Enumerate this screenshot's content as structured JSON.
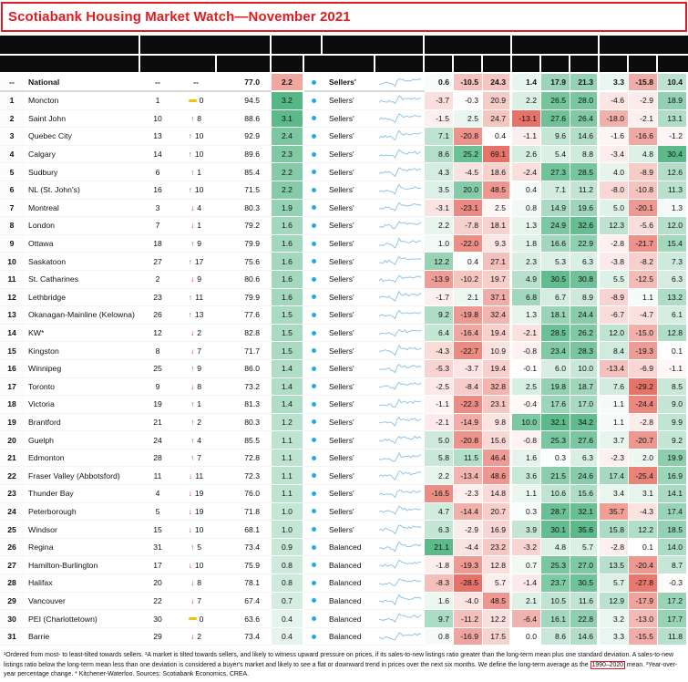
{
  "title": "Scotiabank Housing Market Watch—November 2021",
  "colors": {
    "title_red": "#e11b22",
    "dot_blue": "#29a8e0",
    "up_green": "#169b4c",
    "down_red": "#d7281e",
    "flat_yellow": "#f2c500",
    "spark_blue": "#92c6e9",
    "header_black": "#0b0b0b"
  },
  "heatmap": {
    "green": "#4db380",
    "red": "#e4675c",
    "col_max": [
      21.1,
      28.5,
      69.1,
      13.1,
      32.1,
      35.6,
      35.7,
      29.2,
      30.4
    ],
    "col_reverse": [
      false,
      false,
      true,
      false,
      false,
      false,
      false,
      false,
      false
    ],
    "dev_max": 3.2,
    "overrides": {
      "0-dev": "#f2a79e",
      "24-6": "#ef9f94"
    }
  },
  "sparkline_base": [
    6,
    6.5,
    6,
    7,
    6.5,
    7,
    6,
    5,
    3,
    8,
    12,
    10,
    9,
    9.5,
    8.5,
    9,
    8.8,
    9.5,
    10,
    9,
    9.5,
    10
  ],
  "chart_data": {
    "type": "table",
    "value_column_count": 9,
    "rows": [
      {
        "rank": "--",
        "city": "National",
        "prev": "--",
        "dir": null,
        "chg": "--",
        "ratio": "77.0",
        "dev": "2.2",
        "market": "Sellers'",
        "vals": [
          0.6,
          -10.5,
          24.3,
          1.4,
          17.9,
          21.3,
          3.3,
          -15.8,
          10.4
        ]
      },
      {
        "rank": "1",
        "city": "Moncton",
        "prev": "1",
        "dir": "flat",
        "chg": "0",
        "ratio": "94.5",
        "dev": "3.2",
        "market": "Sellers'",
        "vals": [
          -3.7,
          -0.3,
          20.9,
          2.2,
          26.5,
          28.0,
          -4.6,
          -2.9,
          18.9
        ]
      },
      {
        "rank": "2",
        "city": "Saint John",
        "prev": "10",
        "dir": "up",
        "chg": "8",
        "ratio": "88.6",
        "dev": "3.1",
        "market": "Sellers'",
        "vals": [
          -1.5,
          2.5,
          24.7,
          -13.1,
          27.6,
          26.4,
          -18.0,
          -2.1,
          13.1
        ]
      },
      {
        "rank": "3",
        "city": "Quebec City",
        "prev": "13",
        "dir": "up",
        "chg": "10",
        "ratio": "92.9",
        "dev": "2.4",
        "market": "Sellers'",
        "vals": [
          7.1,
          -20.8,
          0.4,
          -1.1,
          9.6,
          14.6,
          -1.6,
          -16.6,
          -1.2
        ]
      },
      {
        "rank": "4",
        "city": "Calgary",
        "prev": "14",
        "dir": "up",
        "chg": "10",
        "ratio": "89.6",
        "dev": "2.3",
        "market": "Sellers'",
        "vals": [
          8.6,
          25.2,
          69.1,
          2.6,
          5.4,
          8.8,
          -3.4,
          4.8,
          30.4
        ]
      },
      {
        "rank": "5",
        "city": "Sudbury",
        "prev": "6",
        "dir": "up",
        "chg": "1",
        "ratio": "85.4",
        "dev": "2.2",
        "market": "Sellers'",
        "vals": [
          4.3,
          -4.5,
          18.6,
          -2.4,
          27.3,
          28.5,
          4.0,
          -8.9,
          12.6
        ]
      },
      {
        "rank": "6",
        "city": "NL (St. John's)",
        "prev": "16",
        "dir": "up",
        "chg": "10",
        "ratio": "71.5",
        "dev": "2.2",
        "market": "Sellers'",
        "vals": [
          3.5,
          20.0,
          48.5,
          0.4,
          7.1,
          11.2,
          -8.0,
          -10.8,
          11.3
        ]
      },
      {
        "rank": "7",
        "city": "Montreal",
        "prev": "3",
        "dir": "down",
        "chg": "4",
        "ratio": "80.3",
        "dev": "1.9",
        "market": "Sellers'",
        "vals": [
          -3.1,
          -23.1,
          2.5,
          0.8,
          14.9,
          19.6,
          5.0,
          -20.1,
          1.3
        ]
      },
      {
        "rank": "8",
        "city": "London",
        "prev": "7",
        "dir": "down",
        "chg": "1",
        "ratio": "79.2",
        "dev": "1.6",
        "market": "Sellers'",
        "vals": [
          2.2,
          -7.8,
          18.1,
          1.3,
          24.9,
          32.6,
          12.3,
          -5.6,
          12.0
        ]
      },
      {
        "rank": "9",
        "city": "Ottawa",
        "prev": "18",
        "dir": "up",
        "chg": "9",
        "ratio": "79.9",
        "dev": "1.6",
        "market": "Sellers'",
        "vals": [
          1.0,
          -22.0,
          9.3,
          1.8,
          16.6,
          22.9,
          -2.8,
          -21.7,
          15.4
        ]
      },
      {
        "rank": "10",
        "city": "Saskatoon",
        "prev": "27",
        "dir": "up",
        "chg": "17",
        "ratio": "75.6",
        "dev": "1.6",
        "market": "Sellers'",
        "vals": [
          12.2,
          0.4,
          27.1,
          2.3,
          5.3,
          6.3,
          -3.8,
          -8.2,
          7.3
        ]
      },
      {
        "rank": "11",
        "city": "St. Catharines",
        "prev": "2",
        "dir": "down",
        "chg": "9",
        "ratio": "80.6",
        "dev": "1.6",
        "market": "Sellers'",
        "vals": [
          -13.9,
          -10.2,
          19.7,
          4.9,
          30.5,
          30.8,
          5.5,
          -12.5,
          6.3
        ]
      },
      {
        "rank": "12",
        "city": "Lethbridge",
        "prev": "23",
        "dir": "up",
        "chg": "11",
        "ratio": "79.9",
        "dev": "1.6",
        "market": "Sellers'",
        "vals": [
          -1.7,
          2.1,
          37.1,
          6.8,
          6.7,
          8.9,
          -8.9,
          1.1,
          13.2
        ]
      },
      {
        "rank": "13",
        "city": "Okanagan-Mainline (Kelowna)",
        "prev": "26",
        "dir": "up",
        "chg": "13",
        "ratio": "77.6",
        "dev": "1.5",
        "market": "Sellers'",
        "vals": [
          9.2,
          -19.8,
          32.4,
          1.3,
          18.1,
          24.4,
          -6.7,
          -4.7,
          6.1
        ]
      },
      {
        "rank": "14",
        "city": "KW*",
        "prev": "12",
        "dir": "down",
        "chg": "2",
        "ratio": "82.8",
        "dev": "1.5",
        "market": "Sellers'",
        "vals": [
          6.4,
          -16.4,
          19.4,
          -2.1,
          28.5,
          26.2,
          12.0,
          -15.0,
          12.8
        ]
      },
      {
        "rank": "15",
        "city": "Kingston",
        "prev": "8",
        "dir": "down",
        "chg": "7",
        "ratio": "71.7",
        "dev": "1.5",
        "market": "Sellers'",
        "vals": [
          -4.3,
          -22.7,
          10.9,
          -0.8,
          23.4,
          28.3,
          8.4,
          -19.3,
          0.1
        ]
      },
      {
        "rank": "16",
        "city": "Winnipeg",
        "prev": "25",
        "dir": "up",
        "chg": "9",
        "ratio": "86.0",
        "dev": "1.4",
        "market": "Sellers'",
        "vals": [
          -5.3,
          -3.7,
          19.4,
          -0.1,
          6.0,
          10.0,
          -13.4,
          -6.9,
          -1.1
        ]
      },
      {
        "rank": "17",
        "city": "Toronto",
        "prev": "9",
        "dir": "down",
        "chg": "8",
        "ratio": "73.2",
        "dev": "1.4",
        "market": "Sellers'",
        "vals": [
          -2.5,
          -8.4,
          32.8,
          2.5,
          19.8,
          18.7,
          7.6,
          -29.2,
          8.5
        ]
      },
      {
        "rank": "18",
        "city": "Victoria",
        "prev": "19",
        "dir": "up",
        "chg": "1",
        "ratio": "81.3",
        "dev": "1.4",
        "market": "Sellers'",
        "vals": [
          -1.1,
          -22.3,
          23.1,
          -0.4,
          17.6,
          17.0,
          1.1,
          -24.4,
          9.0
        ]
      },
      {
        "rank": "19",
        "city": "Brantford",
        "prev": "21",
        "dir": "up",
        "chg": "2",
        "ratio": "80.3",
        "dev": "1.2",
        "market": "Sellers'",
        "vals": [
          -2.1,
          -14.9,
          9.8,
          10.0,
          32.1,
          34.2,
          1.1,
          -2.8,
          9.9
        ]
      },
      {
        "rank": "20",
        "city": "Guelph",
        "prev": "24",
        "dir": "up",
        "chg": "4",
        "ratio": "85.5",
        "dev": "1.1",
        "market": "Sellers'",
        "vals": [
          5.0,
          -20.8,
          15.6,
          -0.8,
          25.3,
          27.6,
          3.7,
          -20.7,
          9.2
        ]
      },
      {
        "rank": "21",
        "city": "Edmonton",
        "prev": "28",
        "dir": "up",
        "chg": "7",
        "ratio": "72.8",
        "dev": "1.1",
        "market": "Sellers'",
        "vals": [
          5.8,
          11.5,
          46.4,
          1.6,
          0.3,
          6.3,
          -2.3,
          2.0,
          19.9
        ]
      },
      {
        "rank": "22",
        "city": "Fraser Valley (Abbotsford)",
        "prev": "11",
        "dir": "down",
        "chg": "11",
        "ratio": "72.3",
        "dev": "1.1",
        "market": "Sellers'",
        "vals": [
          2.2,
          -13.4,
          48.6,
          3.6,
          21.5,
          24.6,
          17.4,
          -25.4,
          16.9
        ]
      },
      {
        "rank": "23",
        "city": "Thunder Bay",
        "prev": "4",
        "dir": "down",
        "chg": "19",
        "ratio": "76.0",
        "dev": "1.1",
        "market": "Sellers'",
        "vals": [
          -16.5,
          -2.3,
          14.8,
          1.1,
          10.6,
          15.6,
          3.4,
          3.1,
          14.1
        ]
      },
      {
        "rank": "24",
        "city": "Peterborough",
        "prev": "5",
        "dir": "down",
        "chg": "19",
        "ratio": "71.8",
        "dev": "1.0",
        "market": "Sellers'",
        "vals": [
          4.7,
          -14.4,
          20.7,
          0.3,
          28.7,
          32.1,
          35.7,
          -4.3,
          17.4
        ]
      },
      {
        "rank": "25",
        "city": "Windsor",
        "prev": "15",
        "dir": "down",
        "chg": "10",
        "ratio": "68.1",
        "dev": "1.0",
        "market": "Sellers'",
        "vals": [
          6.3,
          -2.9,
          16.9,
          3.9,
          30.1,
          35.6,
          15.8,
          12.2,
          18.5
        ]
      },
      {
        "rank": "26",
        "city": "Regina",
        "prev": "31",
        "dir": "up",
        "chg": "5",
        "ratio": "73.4",
        "dev": "0.9",
        "market": "Balanced",
        "vals": [
          21.1,
          -4.4,
          23.2,
          -3.2,
          4.8,
          5.7,
          -2.8,
          0.1,
          14.0
        ]
      },
      {
        "rank": "27",
        "city": "Hamilton-Burlington",
        "prev": "17",
        "dir": "down",
        "chg": "10",
        "ratio": "75.9",
        "dev": "0.8",
        "market": "Balanced",
        "vals": [
          -1.8,
          -19.3,
          12.8,
          0.7,
          25.3,
          27.0,
          13.5,
          -20.4,
          8.7
        ]
      },
      {
        "rank": "28",
        "city": "Halifax",
        "prev": "20",
        "dir": "down",
        "chg": "8",
        "ratio": "78.1",
        "dev": "0.8",
        "market": "Balanced",
        "vals": [
          -8.3,
          -28.5,
          5.7,
          -1.4,
          23.7,
          30.5,
          5.7,
          -27.8,
          -0.3
        ]
      },
      {
        "rank": "29",
        "city": "Vancouver",
        "prev": "22",
        "dir": "down",
        "chg": "7",
        "ratio": "67.4",
        "dev": "0.7",
        "market": "Balanced",
        "vals": [
          1.6,
          -4.0,
          48.5,
          2.1,
          10.5,
          11.6,
          12.9,
          -17.9,
          17.2
        ]
      },
      {
        "rank": "30",
        "city": "PEI (Charlottetown)",
        "prev": "30",
        "dir": "flat",
        "chg": "0",
        "ratio": "63.6",
        "dev": "0.4",
        "market": "Balanced",
        "vals": [
          9.7,
          -11.2,
          12.2,
          -6.4,
          16.1,
          22.8,
          3.2,
          -13.0,
          17.7
        ]
      },
      {
        "rank": "31",
        "city": "Barrie",
        "prev": "29",
        "dir": "down",
        "chg": "2",
        "ratio": "73.4",
        "dev": "0.4",
        "market": "Balanced",
        "vals": [
          0.8,
          -16.9,
          17.5,
          0.0,
          8.6,
          14.6,
          3.3,
          -15.5,
          11.8
        ]
      }
    ]
  },
  "footnotes": {
    "text_a": "¹Ordered from most- to least-tilted towards sellers. ²A market is tilted towards sellers, and likely to witness upward pressure on prices, if its sales-to-new listings ratio greater than the long-term mean plus one standard deviation. A sales-to-new listings ratio below the long-term mean less than one deviation is considered a buyer's market and likely to see a flat or downward trend in prices over the next six months. We define the long-term average as the ",
    "link": "1990–2020",
    "text_b": " mean. ³Year-over-year percentage change. * Kitchener-Waterloo. Sources: Scotiabank Economics, CREA."
  }
}
